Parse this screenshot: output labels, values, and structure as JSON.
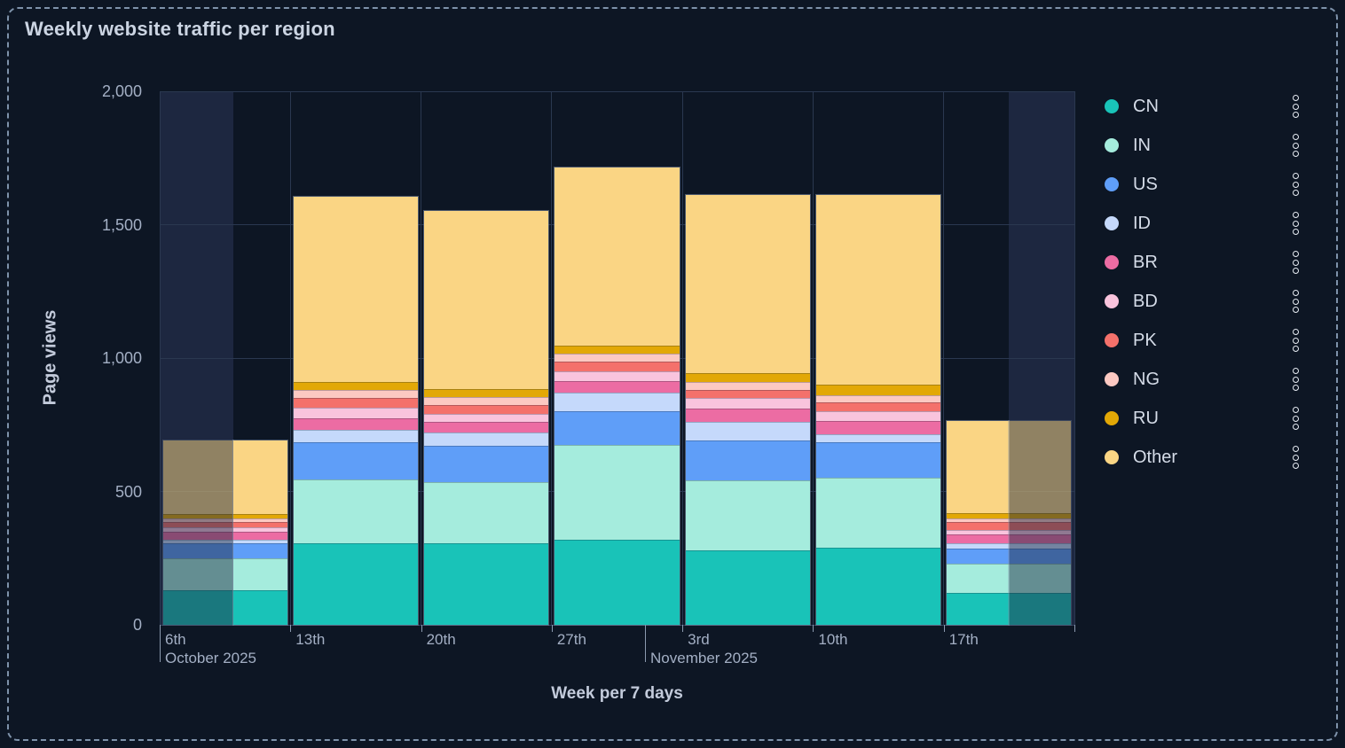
{
  "widget": {
    "title": "Weekly website traffic per region"
  },
  "colors": {
    "background": "#0d1624",
    "dashed_border": "#7e92aa",
    "gridline": "#2a3850",
    "dim_zone": "#1d2740",
    "axis_text": "#a3afc4",
    "axis_title_text": "#c3cbdb",
    "title_text": "#cbd4e2",
    "legend_text": "#d5dce8"
  },
  "chart_data": {
    "type": "bar",
    "stacked": true,
    "title": "Weekly website traffic per region",
    "xlabel": "Week per 7 days",
    "ylabel": "Page views",
    "ylim": [
      0,
      2000
    ],
    "yticks": [
      0,
      500,
      1000,
      1500,
      2000
    ],
    "ytick_labels": [
      "0",
      "500",
      "1,000",
      "1,500",
      "2,000"
    ],
    "grid": true,
    "legend_position": "right",
    "categories": [
      "6th",
      "13th",
      "20th",
      "27th",
      "3rd",
      "10th",
      "17th"
    ],
    "month_markers": [
      {
        "label": "October 2025",
        "position_week": 0
      },
      {
        "label": "November 2025",
        "position_week": 3.714
      }
    ],
    "series": [
      {
        "name": "CN",
        "color": "#19c3b8",
        "values": [
          130,
          305,
          305,
          320,
          280,
          290,
          120
        ]
      },
      {
        "name": "IN",
        "color": "#a5ecdd",
        "values": [
          120,
          240,
          230,
          355,
          260,
          260,
          110
        ]
      },
      {
        "name": "US",
        "color": "#5f9ef8",
        "values": [
          55,
          140,
          135,
          125,
          150,
          135,
          55
        ]
      },
      {
        "name": "ID",
        "color": "#c5d9fb",
        "values": [
          15,
          45,
          50,
          70,
          70,
          30,
          20
        ]
      },
      {
        "name": "BR",
        "color": "#ec6ca3",
        "values": [
          30,
          45,
          40,
          45,
          50,
          50,
          35
        ]
      },
      {
        "name": "BD",
        "color": "#f9c4dd",
        "values": [
          15,
          40,
          30,
          35,
          40,
          35,
          15
        ]
      },
      {
        "name": "PK",
        "color": "#f4716b",
        "values": [
          20,
          35,
          35,
          35,
          30,
          35,
          30
        ]
      },
      {
        "name": "NG",
        "color": "#fcc9c2",
        "values": [
          15,
          30,
          30,
          30,
          30,
          25,
          15
        ]
      },
      {
        "name": "RU",
        "color": "#e2a806",
        "values": [
          15,
          30,
          30,
          30,
          35,
          40,
          20
        ]
      },
      {
        "name": "Other",
        "color": "#fad584",
        "values": [
          275,
          695,
          665,
          670,
          665,
          710,
          345
        ]
      }
    ],
    "dimmed_partial_weeks": [
      {
        "week_index": 0,
        "side": "left",
        "fraction": 0.565
      },
      {
        "week_index": 6,
        "side": "right",
        "fraction": 0.5
      }
    ]
  }
}
